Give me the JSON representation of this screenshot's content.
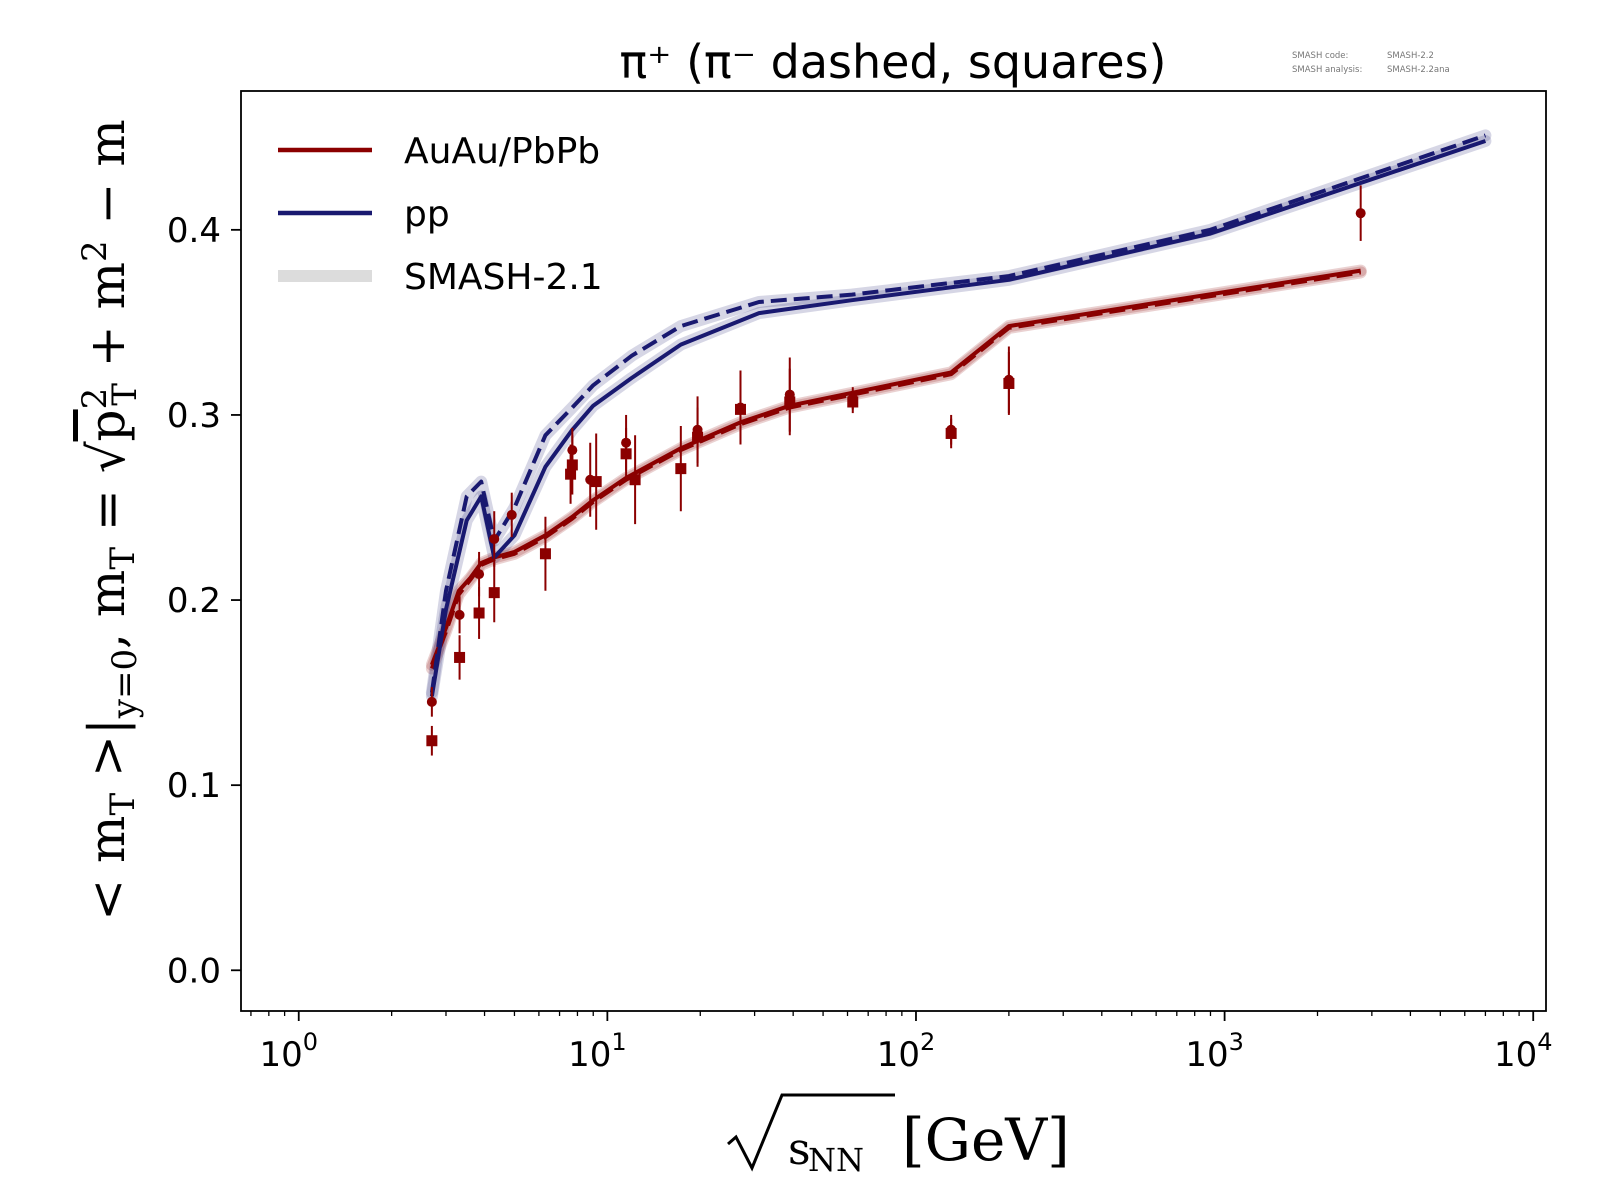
{
  "chart_data": {
    "type": "line",
    "title": "π⁺ (π⁻ dashed, squares)",
    "xlabel": "√s_NN [GeV]",
    "ylabel": "<m_T>|_{y=0}, m_T = √(p_T² + m²) − m",
    "x_scale": "log",
    "xlim": [
      0.65,
      11000
    ],
    "ylim": [
      -0.022,
      0.475
    ],
    "x_ticks": [
      1,
      10,
      100,
      1000,
      10000
    ],
    "x_tick_labels": [
      {
        "base": "10",
        "exp": "0"
      },
      {
        "base": "10",
        "exp": "1"
      },
      {
        "base": "10",
        "exp": "2"
      },
      {
        "base": "10",
        "exp": "3"
      },
      {
        "base": "10",
        "exp": "4"
      }
    ],
    "y_ticks": [
      0.0,
      0.1,
      0.2,
      0.3,
      0.4
    ],
    "y_tick_labels": [
      "0.0",
      "0.1",
      "0.2",
      "0.3",
      "0.4"
    ],
    "grid": false,
    "legend_position": "top-left",
    "legend": [
      {
        "label": "AuAu/PbPb",
        "color": "#8b0000",
        "style": "solid"
      },
      {
        "label": "pp",
        "color": "#191970",
        "style": "solid"
      },
      {
        "label": "SMASH-2.1",
        "color": "#dcdcdc",
        "style": "band"
      }
    ],
    "series": [
      {
        "name": "AuAu/PbPb",
        "particle": "π⁺",
        "color": "#8b0000",
        "style": "solid",
        "x": [
          2.7,
          3.0,
          3.3,
          3.6,
          3.9,
          4.3,
          5.0,
          6.3,
          7.7,
          9.0,
          11.5,
          17.3,
          19.6,
          27,
          39,
          62.4,
          130,
          200,
          2760
        ],
        "y": [
          0.165,
          0.185,
          0.205,
          0.212,
          0.22,
          0.223,
          0.226,
          0.235,
          0.245,
          0.254,
          0.266,
          0.282,
          0.286,
          0.296,
          0.305,
          0.312,
          0.323,
          0.348,
          0.378
        ]
      },
      {
        "name": "AuAu/PbPb",
        "particle": "π⁻",
        "color": "#8b0000",
        "style": "dashed",
        "x": [
          2.7,
          3.0,
          3.3,
          3.6,
          3.9,
          4.3,
          5.0,
          6.3,
          7.7,
          9.0,
          11.5,
          17.3,
          19.6,
          27,
          39,
          62.4,
          130,
          200,
          2760
        ],
        "y": [
          0.163,
          0.183,
          0.203,
          0.211,
          0.219,
          0.222,
          0.225,
          0.234,
          0.244,
          0.253,
          0.265,
          0.281,
          0.285,
          0.295,
          0.304,
          0.311,
          0.322,
          0.347,
          0.377
        ]
      },
      {
        "name": "pp",
        "particle": "π⁺",
        "color": "#191970",
        "style": "solid",
        "x": [
          2.7,
          3.0,
          3.5,
          3.9,
          4.3,
          5.0,
          6.3,
          7.7,
          9.0,
          12,
          17.3,
          31,
          62,
          200,
          900,
          7000
        ],
        "y": [
          0.148,
          0.195,
          0.243,
          0.256,
          0.223,
          0.235,
          0.272,
          0.292,
          0.305,
          0.32,
          0.338,
          0.355,
          0.362,
          0.373,
          0.398,
          0.448
        ]
      },
      {
        "name": "pp",
        "particle": "π⁻",
        "color": "#191970",
        "style": "dashed",
        "x": [
          2.7,
          3.0,
          3.5,
          3.9,
          4.3,
          5.0,
          6.3,
          7.7,
          9.0,
          12,
          17.3,
          31,
          62,
          200,
          900,
          7000
        ],
        "y": [
          0.15,
          0.205,
          0.256,
          0.264,
          0.232,
          0.25,
          0.289,
          0.304,
          0.316,
          0.332,
          0.348,
          0.361,
          0.365,
          0.375,
          0.4,
          0.451
        ]
      }
    ],
    "data_points": [
      {
        "particle": "π⁺",
        "marker": "circle",
        "color": "#8b0000",
        "points": [
          {
            "x": 2.7,
            "y": 0.145,
            "err": 0.008
          },
          {
            "x": 3.32,
            "y": 0.192,
            "err": 0.01
          },
          {
            "x": 3.84,
            "y": 0.214,
            "err": 0.012
          },
          {
            "x": 4.3,
            "y": 0.233,
            "err": 0.015
          },
          {
            "x": 4.9,
            "y": 0.246,
            "err": 0.012
          },
          {
            "x": 7.7,
            "y": 0.281,
            "err": 0.012
          },
          {
            "x": 8.8,
            "y": 0.265,
            "err": 0.02
          },
          {
            "x": 11.5,
            "y": 0.285,
            "err": 0.015
          },
          {
            "x": 19.6,
            "y": 0.292,
            "err": 0.018
          },
          {
            "x": 27,
            "y": 0.304,
            "err": 0.02
          },
          {
            "x": 39,
            "y": 0.311,
            "err": 0.02
          },
          {
            "x": 62.4,
            "y": 0.309,
            "err": 0.006
          },
          {
            "x": 130,
            "y": 0.292,
            "err": 0.008
          },
          {
            "x": 200,
            "y": 0.319,
            "err": 0.018
          },
          {
            "x": 2760,
            "y": 0.409,
            "err": 0.015
          }
        ]
      },
      {
        "particle": "π⁻",
        "marker": "square",
        "color": "#8b0000",
        "points": [
          {
            "x": 2.7,
            "y": 0.124,
            "err": 0.008
          },
          {
            "x": 3.32,
            "y": 0.169,
            "err": 0.012
          },
          {
            "x": 3.84,
            "y": 0.193,
            "err": 0.014
          },
          {
            "x": 4.3,
            "y": 0.204,
            "err": 0.016
          },
          {
            "x": 6.3,
            "y": 0.225,
            "err": 0.02
          },
          {
            "x": 7.6,
            "y": 0.268,
            "err": 0.016
          },
          {
            "x": 7.7,
            "y": 0.273,
            "err": 0.016
          },
          {
            "x": 9.2,
            "y": 0.264,
            "err": 0.026
          },
          {
            "x": 11.5,
            "y": 0.279,
            "err": 0.014
          },
          {
            "x": 12.3,
            "y": 0.265,
            "err": 0.024
          },
          {
            "x": 17.3,
            "y": 0.271,
            "err": 0.023
          },
          {
            "x": 19.6,
            "y": 0.288,
            "err": 0.016
          },
          {
            "x": 27,
            "y": 0.303,
            "err": 0.018
          },
          {
            "x": 39,
            "y": 0.307,
            "err": 0.018
          },
          {
            "x": 62.4,
            "y": 0.307,
            "err": 0.006
          },
          {
            "x": 130,
            "y": 0.29,
            "err": 0.008
          },
          {
            "x": 200,
            "y": 0.317,
            "err": 0.017
          }
        ]
      }
    ]
  },
  "meta": {
    "code_label": "SMASH code:",
    "code_value": "SMASH-2.2",
    "analysis_label": "SMASH analysis:",
    "analysis_value": "SMASH-2.2ana"
  },
  "colors": {
    "auau": "#8b0000",
    "pp": "#191970",
    "band": "#dcdcdc"
  }
}
